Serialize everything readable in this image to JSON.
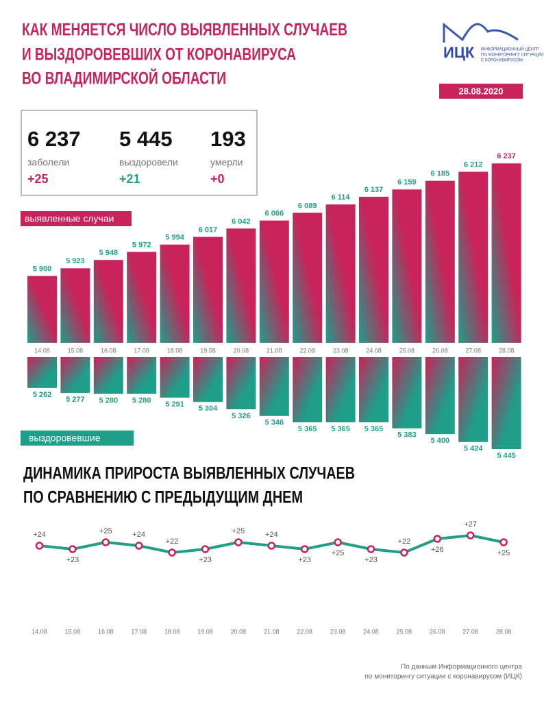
{
  "header": {
    "title_lines": [
      "КАК МЕНЯЕТСЯ ЧИСЛО ВЫЯВЛЕННЫХ СЛУЧАЕВ",
      "И ВЫЗДОРОВЕВШИХ ОТ КОРОНАВИРУСА",
      "ВО ВЛАДИМИРСКОЙ ОБЛАСТИ"
    ],
    "logo": "ИЦК",
    "logo_lines": [
      "ИНФОРМАЦИОННЫЙ ЦЕНТР",
      "ПО МОНИТОРИНГУ СИТУАЦИИ",
      "С КОРОНАВИРУСОМ"
    ],
    "date": "28.08.2020"
  },
  "stats": [
    {
      "value": "6 237",
      "label": "заболели",
      "delta": "+25"
    },
    {
      "value": "5 445",
      "label": "выздоровели",
      "delta": "+21"
    },
    {
      "value": "193",
      "label": "умерли",
      "delta": "+0"
    }
  ],
  "source_lines": [
    "По данным Информационного центра",
    "по мониторингу ситуации с коронавирусом (ИЦК)"
  ],
  "chart_data": [
    {
      "type": "bar",
      "name": "выявленные случаи",
      "direction": "up",
      "color": "#c8235a",
      "categories": [
        "14.08",
        "15.08",
        "16.08",
        "17.08",
        "18.08",
        "19.08",
        "20.08",
        "21.08",
        "22.08",
        "23.08",
        "24.08",
        "25.08",
        "26.08",
        "27.08",
        "28.08"
      ],
      "values": [
        5900,
        5923,
        5948,
        5972,
        5994,
        6017,
        6042,
        6066,
        6089,
        6114,
        6137,
        6159,
        6185,
        6212,
        6237
      ],
      "value_labels": [
        "5 900",
        "5 923",
        "5 948",
        "5 972",
        "5 994",
        "6 017",
        "6 042",
        "6 066",
        "6 089",
        "6 114",
        "6 137",
        "6 159",
        "6 185",
        "6 212",
        "6 237"
      ],
      "ylim": [
        5700,
        6250
      ]
    },
    {
      "type": "bar",
      "name": "выздоровевшие",
      "direction": "down",
      "color": "#1f9e8a",
      "values": [
        5262,
        5277,
        5280,
        5280,
        5291,
        5304,
        5326,
        5346,
        5365,
        5365,
        5365,
        5383,
        5400,
        5424,
        5445
      ],
      "value_labels": [
        "5 262",
        "5 277",
        "5 280",
        "5 280",
        "5 291",
        "5 304",
        "5 326",
        "5 346",
        "5 365",
        "5 365",
        "5 365",
        "5 383",
        "5 400",
        "5 424",
        "5 445"
      ],
      "ylim": [
        5170,
        5450
      ]
    },
    {
      "type": "line",
      "title_lines": [
        "ДИНАМИКА ПРИРОСТА ВЫЯВЛЕННЫХ СЛУЧАЕВ",
        "ПО СРАВНЕНИЮ С ПРЕДЫДУЩИМ ДНЕМ"
      ],
      "color": "#1f9e8a",
      "marker_color": "#c8235a",
      "categories": [
        "14.08",
        "15.08",
        "16.08",
        "17.08",
        "18.08",
        "19.08",
        "20.08",
        "21.08",
        "22.08",
        "23.08",
        "24.08",
        "25.08",
        "26.08",
        "27.08",
        "28.08"
      ],
      "values": [
        24,
        23,
        25,
        24,
        22,
        23,
        25,
        24,
        23,
        25,
        23,
        22,
        26,
        27,
        25
      ],
      "value_labels": [
        "+24",
        "+23",
        "+25",
        "+24",
        "+22",
        "+23",
        "+25",
        "+24",
        "+23",
        "+25",
        "+23",
        "+22",
        "+26",
        "+27",
        "+25"
      ],
      "ylim": [
        0,
        30
      ]
    }
  ]
}
